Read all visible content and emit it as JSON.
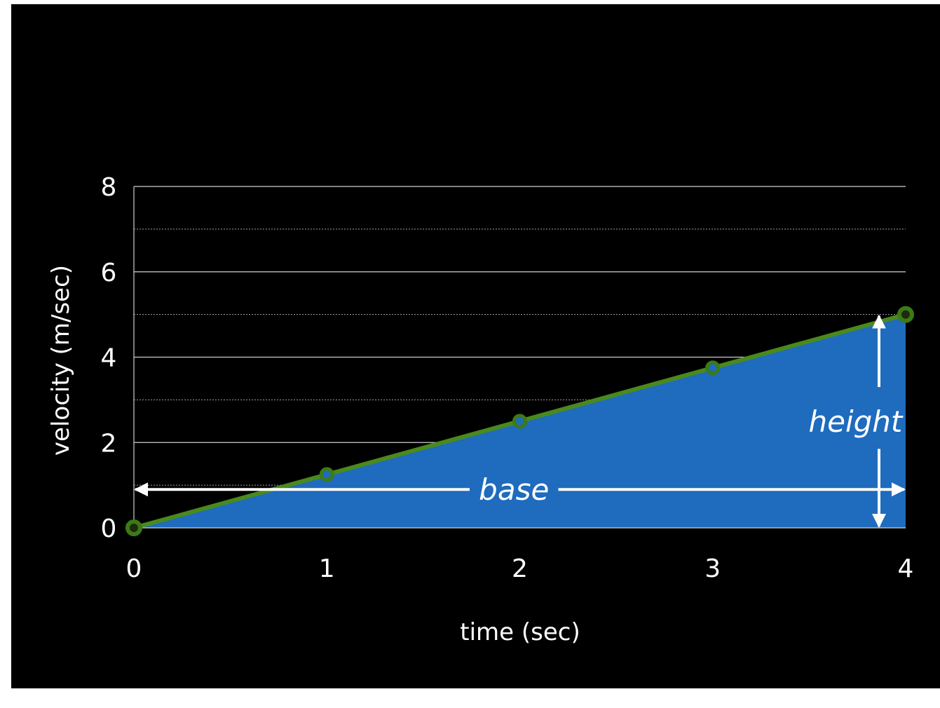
{
  "chart_data": {
    "type": "area",
    "x": [
      0,
      1,
      2,
      3,
      4
    ],
    "y": [
      0,
      1.25,
      2.5,
      3.75,
      5
    ],
    "xlabel": "time (sec)",
    "ylabel": "velocity (m/sec)",
    "xlim": [
      0,
      4
    ],
    "ylim": [
      0,
      8
    ],
    "x_ticks": [
      "0",
      "1",
      "2",
      "3",
      "4"
    ],
    "y_ticks": [
      "0",
      "2",
      "4",
      "6",
      "8"
    ],
    "major_grid_y": [
      2,
      4,
      6,
      8
    ],
    "minor_grid_y": [
      1,
      3,
      5,
      7
    ],
    "grid": true,
    "annotations": {
      "base": "base",
      "height": "height"
    }
  },
  "colors": {
    "background": "#000000",
    "area_fill": "#1f6bbd",
    "line": "#4a8a1c",
    "marker_stroke": "#3c7a16",
    "grid": "#cfcfcf",
    "text": "#ffffff",
    "arrow": "#ffffff"
  }
}
